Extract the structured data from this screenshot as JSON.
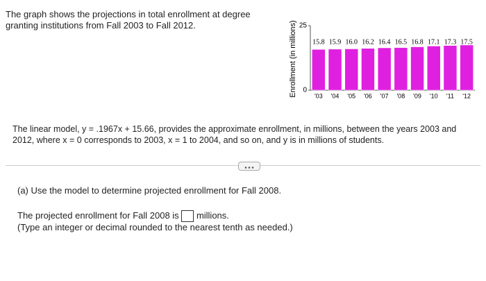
{
  "intro": "The graph shows the projections in total enrollment at degree granting institutions from Fall 2003 to Fall 2012.",
  "model_text": "The linear model, y = .1967x + 15.66, provides the approximate enrollment, in millions, between the years 2003 and 2012, where x = 0 corresponds to 2003, x = 1 to 2004, and so on, and y is in millions of students.",
  "part_a": {
    "prompt": "(a) Use the model to determine projected enrollment for Fall 2008.",
    "answer_before": "The projected enrollment for Fall 2008 is",
    "answer_after": "millions.",
    "hint": "(Type an integer or decimal rounded to the nearest tenth as needed.)"
  },
  "chart_data": {
    "type": "bar",
    "ylabel": "Enrollment (in millions)",
    "categories": [
      "'03",
      "'04",
      "'05",
      "'06",
      "'07",
      "'08",
      "'09",
      "'10",
      "'11",
      "'12"
    ],
    "values": [
      15.8,
      15.9,
      16.0,
      16.2,
      16.4,
      16.5,
      16.8,
      17.1,
      17.3,
      17.5
    ],
    "value_labels": [
      "15.8",
      "15.9",
      "16.0",
      "16.2",
      "16.4",
      "16.5",
      "16.8",
      "17.1",
      "17.3",
      "17.5"
    ],
    "color": "#e020e0",
    "ylim": [
      0,
      25
    ],
    "yticks": [
      0,
      25
    ],
    "grid": false
  }
}
